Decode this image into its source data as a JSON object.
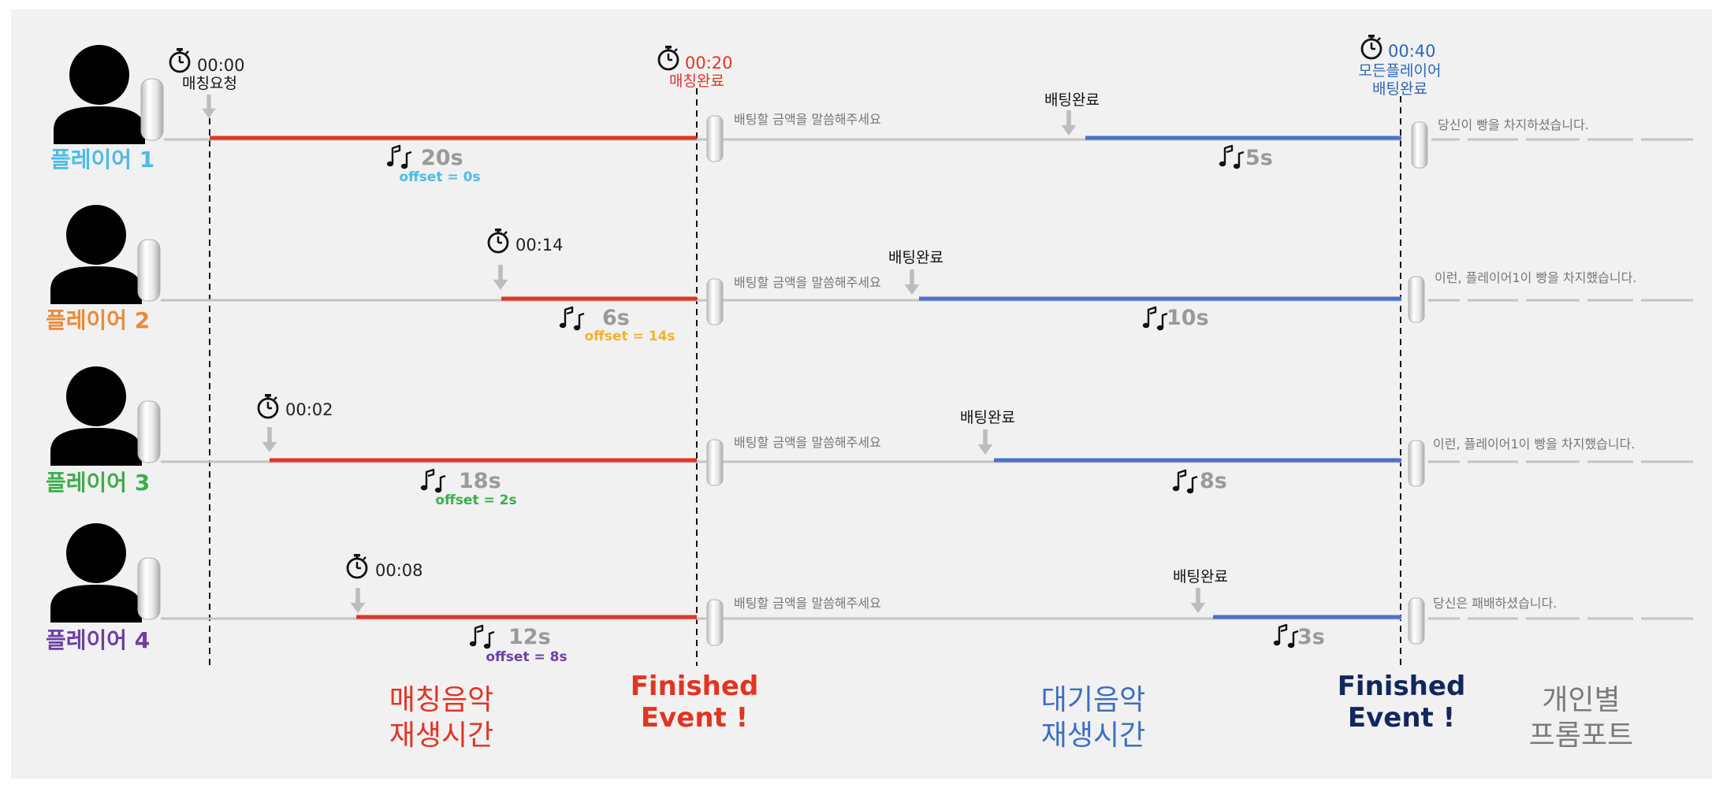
{
  "colors": {
    "background": "#f1f1f1",
    "match_line": "#e03527",
    "wait_line": "#4a72c4",
    "base_line": "#c4c4c4",
    "gray_text": "#9a9a9a",
    "finished_red": "#e23423",
    "finished_navy": "#12275e",
    "wait_label_blue": "#3c6fc2",
    "prompt_gray": "#7b7b7b"
  },
  "start_marker": {
    "time": "00:00",
    "label": "매칭요청"
  },
  "match_complete": {
    "time": "00:20",
    "label": "매칭완료",
    "color": "#e23423"
  },
  "all_bet_complete": {
    "time": "00:40",
    "label_line1": "모든플레이어",
    "label_line2": "배팅완료",
    "color": "#2c66b8"
  },
  "players": [
    {
      "name": "플레이어 1",
      "color": "#4dbbe8",
      "join_time": "00:00",
      "match_duration": "20s",
      "offset": "offset = 0s",
      "bet_prompt": "배팅할 금액을 말씀해주세요",
      "bet_label": "배팅완료",
      "wait_duration": "5s",
      "result": "당신이 빵을 차지하셨습니다."
    },
    {
      "name": "플레이어 2",
      "color": "#ea8a3a",
      "join_time": "00:14",
      "match_duration": "6s",
      "offset": "offset = 14s",
      "offset_color": "#f0b32a",
      "bet_prompt": "배팅할 금액을 말씀해주세요",
      "bet_label": "배팅완료",
      "wait_duration": "10s",
      "result": "이런, 플레이어1이 빵을 차지했습니다."
    },
    {
      "name": "플레이어 3",
      "color": "#3cae4b",
      "join_time": "00:02",
      "match_duration": "18s",
      "offset": "offset = 2s",
      "bet_prompt": "배팅할 금액을 말씀해주세요",
      "bet_label": "배팅완료",
      "wait_duration": "8s",
      "result": "이런, 플레이어1이 빵을 차지했습니다."
    },
    {
      "name": "플레이어 4",
      "color": "#6e3fa3",
      "join_time": "00:08",
      "match_duration": "12s",
      "offset": "offset = 8s",
      "bet_prompt": "배팅할 금액을 말씀해주세요",
      "bet_label": "배팅완료",
      "wait_duration": "3s",
      "result": "당신은 패배하셨습니다."
    }
  ],
  "bottom_labels": {
    "match_music_line1": "매칭음악",
    "match_music_line2": "재생시간",
    "finished1_line1": "Finished",
    "finished1_line2": "Event !",
    "wait_music_line1": "대기음악",
    "wait_music_line2": "재생시간",
    "finished2_line1": "Finished",
    "finished2_line2": "Event !",
    "prompt_line1": "개인별",
    "prompt_line2": "프롬포트"
  }
}
